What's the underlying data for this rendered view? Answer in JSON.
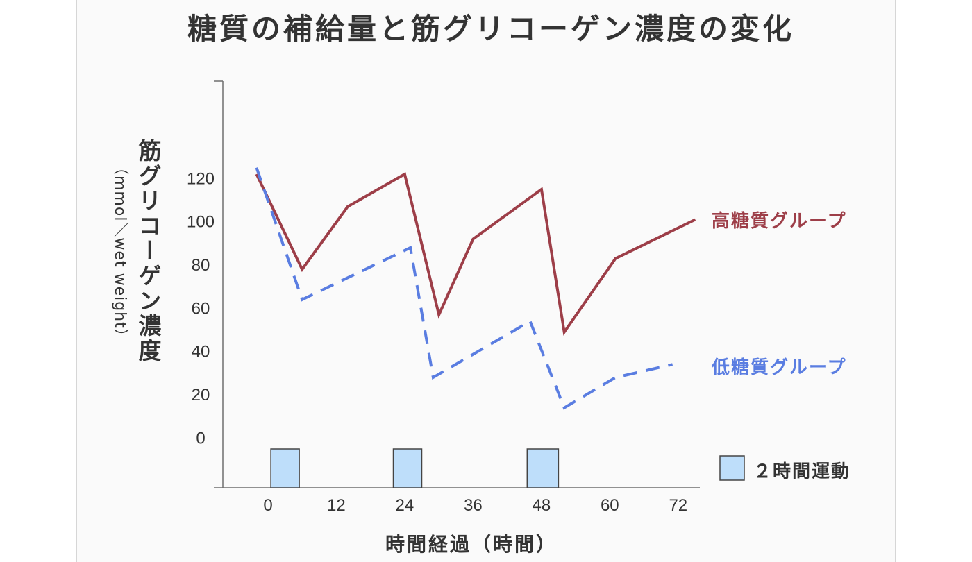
{
  "chart_data": {
    "type": "line",
    "title": "糖質の補給量と筋グリコーゲン濃度の変化",
    "xlabel": "時間経過（時間）",
    "ylabel": "筋グリコーゲン濃度",
    "yunit": "（mmol／wet weight）",
    "x_ticks": [
      0,
      12,
      24,
      36,
      48,
      60,
      72
    ],
    "y_ticks": [
      0,
      20,
      40,
      60,
      80,
      100,
      120
    ],
    "xlim": [
      -9.5,
      75.8
    ],
    "ylim": [
      -23,
      165
    ],
    "grid": false,
    "legend_placement": "right",
    "series": [
      {
        "name": "高糖質グループ",
        "color": "#9d3e48",
        "dashed": false,
        "x": [
          -2,
          6,
          14,
          24,
          30,
          36,
          48,
          52,
          61,
          75
        ],
        "y": [
          122,
          78,
          107,
          122,
          57,
          92,
          115,
          49,
          83,
          101
        ]
      },
      {
        "name": "低糖質グループ",
        "color": "#5a7de1",
        "dashed": true,
        "x": [
          -2,
          6,
          25,
          29,
          46,
          52,
          61,
          71
        ],
        "y": [
          125,
          64,
          88,
          28,
          54,
          14,
          28,
          34
        ]
      }
    ],
    "exercise_bouts": {
      "label": "２時間運動",
      "color": "#bedefa",
      "periods": [
        [
          0.5,
          5.5
        ],
        [
          22,
          27
        ],
        [
          45.5,
          51
        ]
      ]
    }
  }
}
